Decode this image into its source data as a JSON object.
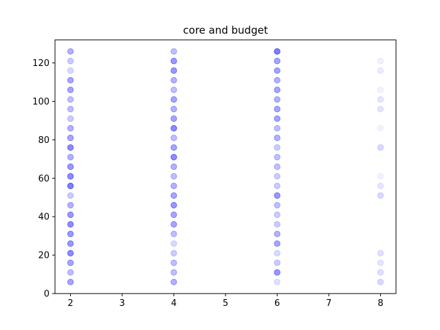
{
  "chart_data": {
    "type": "scatter",
    "title": "core and budget",
    "xlabel": "",
    "ylabel": "",
    "xlim": [
      1.7,
      8.3
    ],
    "ylim": [
      0,
      132
    ],
    "xticks": [
      2,
      3,
      4,
      5,
      6,
      7,
      8
    ],
    "yticks": [
      0,
      20,
      40,
      60,
      80,
      100,
      120
    ],
    "grid": false,
    "marker_color": "#0000ff",
    "series": [
      {
        "points": [
          {
            "x": 2,
            "y": 6,
            "alpha": 0.35
          },
          {
            "x": 2,
            "y": 11,
            "alpha": 0.25
          },
          {
            "x": 2,
            "y": 16,
            "alpha": 0.35
          },
          {
            "x": 2,
            "y": 21,
            "alpha": 0.45
          },
          {
            "x": 2,
            "y": 26,
            "alpha": 0.4
          },
          {
            "x": 2,
            "y": 31,
            "alpha": 0.4
          },
          {
            "x": 2,
            "y": 36,
            "alpha": 0.45
          },
          {
            "x": 2,
            "y": 41,
            "alpha": 0.4
          },
          {
            "x": 2,
            "y": 46,
            "alpha": 0.3
          },
          {
            "x": 2,
            "y": 51,
            "alpha": 0.2
          },
          {
            "x": 2,
            "y": 56,
            "alpha": 0.5
          },
          {
            "x": 2,
            "y": 61,
            "alpha": 0.45
          },
          {
            "x": 2,
            "y": 66,
            "alpha": 0.4
          },
          {
            "x": 2,
            "y": 71,
            "alpha": 0.3
          },
          {
            "x": 2,
            "y": 76,
            "alpha": 0.45
          },
          {
            "x": 2,
            "y": 81,
            "alpha": 0.35
          },
          {
            "x": 2,
            "y": 86,
            "alpha": 0.3
          },
          {
            "x": 2,
            "y": 91,
            "alpha": 0.2
          },
          {
            "x": 2,
            "y": 96,
            "alpha": 0.25
          },
          {
            "x": 2,
            "y": 101,
            "alpha": 0.25
          },
          {
            "x": 2,
            "y": 106,
            "alpha": 0.35
          },
          {
            "x": 2,
            "y": 111,
            "alpha": 0.35
          },
          {
            "x": 2,
            "y": 116,
            "alpha": 0.15
          },
          {
            "x": 2,
            "y": 121,
            "alpha": 0.2
          },
          {
            "x": 2,
            "y": 126,
            "alpha": 0.3
          },
          {
            "x": 4,
            "y": 6,
            "alpha": 0.3
          },
          {
            "x": 4,
            "y": 11,
            "alpha": 0.25
          },
          {
            "x": 4,
            "y": 16,
            "alpha": 0.25
          },
          {
            "x": 4,
            "y": 21,
            "alpha": 0.2
          },
          {
            "x": 4,
            "y": 26,
            "alpha": 0.15
          },
          {
            "x": 4,
            "y": 31,
            "alpha": 0.25
          },
          {
            "x": 4,
            "y": 36,
            "alpha": 0.35
          },
          {
            "x": 4,
            "y": 41,
            "alpha": 0.35
          },
          {
            "x": 4,
            "y": 46,
            "alpha": 0.4
          },
          {
            "x": 4,
            "y": 51,
            "alpha": 0.35
          },
          {
            "x": 4,
            "y": 56,
            "alpha": 0.3
          },
          {
            "x": 4,
            "y": 61,
            "alpha": 0.25
          },
          {
            "x": 4,
            "y": 66,
            "alpha": 0.3
          },
          {
            "x": 4,
            "y": 71,
            "alpha": 0.45
          },
          {
            "x": 4,
            "y": 76,
            "alpha": 0.35
          },
          {
            "x": 4,
            "y": 81,
            "alpha": 0.25
          },
          {
            "x": 4,
            "y": 86,
            "alpha": 0.45
          },
          {
            "x": 4,
            "y": 91,
            "alpha": 0.35
          },
          {
            "x": 4,
            "y": 96,
            "alpha": 0.3
          },
          {
            "x": 4,
            "y": 101,
            "alpha": 0.35
          },
          {
            "x": 4,
            "y": 106,
            "alpha": 0.25
          },
          {
            "x": 4,
            "y": 111,
            "alpha": 0.3
          },
          {
            "x": 4,
            "y": 116,
            "alpha": 0.4
          },
          {
            "x": 4,
            "y": 121,
            "alpha": 0.4
          },
          {
            "x": 4,
            "y": 126,
            "alpha": 0.25
          },
          {
            "x": 6,
            "y": 6,
            "alpha": 0.12
          },
          {
            "x": 6,
            "y": 11,
            "alpha": 0.4
          },
          {
            "x": 6,
            "y": 16,
            "alpha": 0.2
          },
          {
            "x": 6,
            "y": 21,
            "alpha": 0.15
          },
          {
            "x": 6,
            "y": 26,
            "alpha": 0.35
          },
          {
            "x": 6,
            "y": 31,
            "alpha": 0.3
          },
          {
            "x": 6,
            "y": 36,
            "alpha": 0.2
          },
          {
            "x": 6,
            "y": 41,
            "alpha": 0.2
          },
          {
            "x": 6,
            "y": 46,
            "alpha": 0.25
          },
          {
            "x": 6,
            "y": 51,
            "alpha": 0.4
          },
          {
            "x": 6,
            "y": 56,
            "alpha": 0.2
          },
          {
            "x": 6,
            "y": 61,
            "alpha": 0.2
          },
          {
            "x": 6,
            "y": 66,
            "alpha": 0.25
          },
          {
            "x": 6,
            "y": 71,
            "alpha": 0.25
          },
          {
            "x": 6,
            "y": 76,
            "alpha": 0.2
          },
          {
            "x": 6,
            "y": 81,
            "alpha": 0.3
          },
          {
            "x": 6,
            "y": 86,
            "alpha": 0.25
          },
          {
            "x": 6,
            "y": 91,
            "alpha": 0.35
          },
          {
            "x": 6,
            "y": 96,
            "alpha": 0.35
          },
          {
            "x": 6,
            "y": 101,
            "alpha": 0.3
          },
          {
            "x": 6,
            "y": 106,
            "alpha": 0.35
          },
          {
            "x": 6,
            "y": 111,
            "alpha": 0.3
          },
          {
            "x": 6,
            "y": 116,
            "alpha": 0.35
          },
          {
            "x": 6,
            "y": 121,
            "alpha": 0.35
          },
          {
            "x": 6,
            "y": 126,
            "alpha": 0.5
          },
          {
            "x": 8,
            "y": 6,
            "alpha": 0.15
          },
          {
            "x": 8,
            "y": 11,
            "alpha": 0.12
          },
          {
            "x": 8,
            "y": 16,
            "alpha": 0.1
          },
          {
            "x": 8,
            "y": 21,
            "alpha": 0.12
          },
          {
            "x": 8,
            "y": 51,
            "alpha": 0.15
          },
          {
            "x": 8,
            "y": 56,
            "alpha": 0.1
          },
          {
            "x": 8,
            "y": 61,
            "alpha": 0.05
          },
          {
            "x": 8,
            "y": 76,
            "alpha": 0.15
          },
          {
            "x": 8,
            "y": 86,
            "alpha": 0.05
          },
          {
            "x": 8,
            "y": 96,
            "alpha": 0.1
          },
          {
            "x": 8,
            "y": 101,
            "alpha": 0.1
          },
          {
            "x": 8,
            "y": 106,
            "alpha": 0.05
          },
          {
            "x": 8,
            "y": 116,
            "alpha": 0.08
          },
          {
            "x": 8,
            "y": 121,
            "alpha": 0.06
          }
        ]
      }
    ]
  }
}
